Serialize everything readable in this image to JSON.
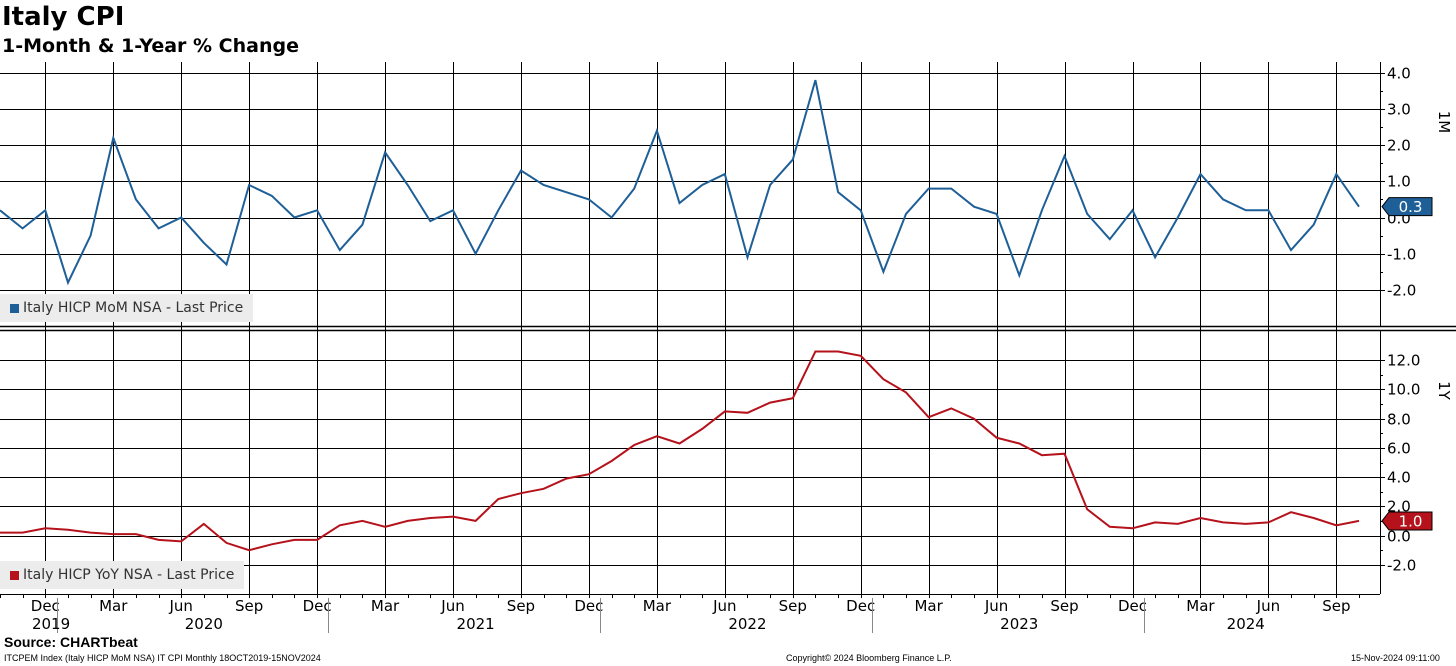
{
  "title": "Italy CPI",
  "subtitle": "1-Month & 1-Year % Change",
  "source": "Source: CHARTbeat",
  "footer": {
    "left": "ITCPEM Index (Italy HICP MoM NSA) IT CPI  Monthly 18OCT2019-15NOV2024",
    "center": "Copyright© 2024 Bloomberg Finance L.P.",
    "right": "15-Nov-2024 09:11:00"
  },
  "colors": {
    "mom": "#1f5f97",
    "yoy": "#b5121b",
    "grid": "#000000",
    "legend_bg": "#ececec"
  },
  "chart_data": [
    {
      "type": "line",
      "panel": "top",
      "axis_title": "1M",
      "ylim": [
        -3.0,
        4.3
      ],
      "yticks": [
        -2.0,
        -1.0,
        0.0,
        1.0,
        2.0,
        3.0,
        4.0
      ],
      "ytick_labels": [
        "-2.0",
        "-1.0",
        "0.0",
        "1.0",
        "2.0",
        "3.0",
        "4.0"
      ],
      "last_value_label": "0.3",
      "legend_label": "Italy HICP MoM NSA - Last Price",
      "series": [
        {
          "name": "Italy HICP MoM NSA - Last Price",
          "x": [
            "2019-10",
            "2019-11",
            "2019-12",
            "2020-01",
            "2020-02",
            "2020-03",
            "2020-04",
            "2020-05",
            "2020-06",
            "2020-07",
            "2020-08",
            "2020-09",
            "2020-10",
            "2020-11",
            "2020-12",
            "2021-01",
            "2021-02",
            "2021-03",
            "2021-04",
            "2021-05",
            "2021-06",
            "2021-07",
            "2021-08",
            "2021-09",
            "2021-10",
            "2021-11",
            "2021-12",
            "2022-01",
            "2022-02",
            "2022-03",
            "2022-04",
            "2022-05",
            "2022-06",
            "2022-07",
            "2022-08",
            "2022-09",
            "2022-10",
            "2022-11",
            "2022-12",
            "2023-01",
            "2023-02",
            "2023-03",
            "2023-04",
            "2023-05",
            "2023-06",
            "2023-07",
            "2023-08",
            "2023-09",
            "2023-10",
            "2023-11",
            "2023-12",
            "2024-01",
            "2024-02",
            "2024-03",
            "2024-04",
            "2024-05",
            "2024-06",
            "2024-07",
            "2024-08",
            "2024-09",
            "2024-10"
          ],
          "values": [
            0.2,
            -0.3,
            0.2,
            -1.8,
            -0.5,
            2.2,
            0.5,
            -0.3,
            0.0,
            -0.7,
            -1.3,
            0.9,
            0.6,
            0.0,
            0.2,
            -0.9,
            -0.2,
            1.8,
            0.9,
            -0.1,
            0.2,
            -1.0,
            0.2,
            1.3,
            0.9,
            0.7,
            0.5,
            0.0,
            0.8,
            2.4,
            0.4,
            0.9,
            1.2,
            -1.1,
            0.9,
            1.6,
            3.8,
            0.7,
            0.2,
            -1.5,
            0.1,
            0.8,
            0.8,
            0.3,
            0.1,
            -1.6,
            0.2,
            1.7,
            0.1,
            -0.6,
            0.2,
            -1.1,
            0.0,
            1.2,
            0.5,
            0.2,
            0.2,
            -0.9,
            -0.2,
            1.2,
            0.3
          ]
        }
      ]
    },
    {
      "type": "line",
      "panel": "bottom",
      "axis_title": "1Y",
      "ylim": [
        -4.0,
        14.0
      ],
      "yticks": [
        -2.0,
        0.0,
        2.0,
        4.0,
        6.0,
        8.0,
        10.0,
        12.0
      ],
      "ytick_labels": [
        "-2.0",
        "0.0",
        "2.0",
        "4.0",
        "6.0",
        "8.0",
        "10.0",
        "12.0"
      ],
      "last_value_label": "1.0",
      "legend_label": "Italy HICP YoY NSA - Last Price",
      "series": [
        {
          "name": "Italy HICP YoY NSA - Last Price",
          "x": [
            "2019-10",
            "2019-11",
            "2019-12",
            "2020-01",
            "2020-02",
            "2020-03",
            "2020-04",
            "2020-05",
            "2020-06",
            "2020-07",
            "2020-08",
            "2020-09",
            "2020-10",
            "2020-11",
            "2020-12",
            "2021-01",
            "2021-02",
            "2021-03",
            "2021-04",
            "2021-05",
            "2021-06",
            "2021-07",
            "2021-08",
            "2021-09",
            "2021-10",
            "2021-11",
            "2021-12",
            "2022-01",
            "2022-02",
            "2022-03",
            "2022-04",
            "2022-05",
            "2022-06",
            "2022-07",
            "2022-08",
            "2022-09",
            "2022-10",
            "2022-11",
            "2022-12",
            "2023-01",
            "2023-02",
            "2023-03",
            "2023-04",
            "2023-05",
            "2023-06",
            "2023-07",
            "2023-08",
            "2023-09",
            "2023-10",
            "2023-11",
            "2023-12",
            "2024-01",
            "2024-02",
            "2024-03",
            "2024-04",
            "2024-05",
            "2024-06",
            "2024-07",
            "2024-08",
            "2024-09",
            "2024-10"
          ],
          "values": [
            0.2,
            0.2,
            0.5,
            0.4,
            0.2,
            0.1,
            0.1,
            -0.3,
            -0.4,
            0.8,
            -0.5,
            -1.0,
            -0.6,
            -0.3,
            -0.3,
            0.7,
            1.0,
            0.6,
            1.0,
            1.2,
            1.3,
            1.0,
            2.5,
            2.9,
            3.2,
            3.9,
            4.2,
            5.1,
            6.2,
            6.8,
            6.3,
            7.3,
            8.5,
            8.4,
            9.1,
            9.4,
            12.6,
            12.6,
            12.3,
            10.7,
            9.8,
            8.1,
            8.7,
            8.0,
            6.7,
            6.3,
            5.5,
            5.6,
            1.8,
            0.6,
            0.5,
            0.9,
            0.8,
            1.2,
            0.9,
            0.8,
            0.9,
            1.6,
            1.2,
            0.7,
            1.0
          ]
        }
      ]
    }
  ],
  "x_axis": {
    "month_labels": [
      "Dec",
      "Mar",
      "Jun",
      "Sep",
      "Dec",
      "Mar",
      "Jun",
      "Sep",
      "Dec",
      "Mar",
      "Jun",
      "Sep",
      "Dec",
      "Mar",
      "Jun",
      "Sep",
      "Dec",
      "Mar",
      "Jun",
      "Sep"
    ],
    "month_label_dates": [
      "2019-12",
      "2020-03",
      "2020-06",
      "2020-09",
      "2020-12",
      "2021-03",
      "2021-06",
      "2021-09",
      "2021-12",
      "2022-03",
      "2022-06",
      "2022-09",
      "2022-12",
      "2023-03",
      "2023-06",
      "2023-09",
      "2023-12",
      "2024-03",
      "2024-06",
      "2024-09"
    ],
    "year_labels": [
      "2019",
      "2020",
      "2021",
      "2022",
      "2023",
      "2024"
    ]
  }
}
